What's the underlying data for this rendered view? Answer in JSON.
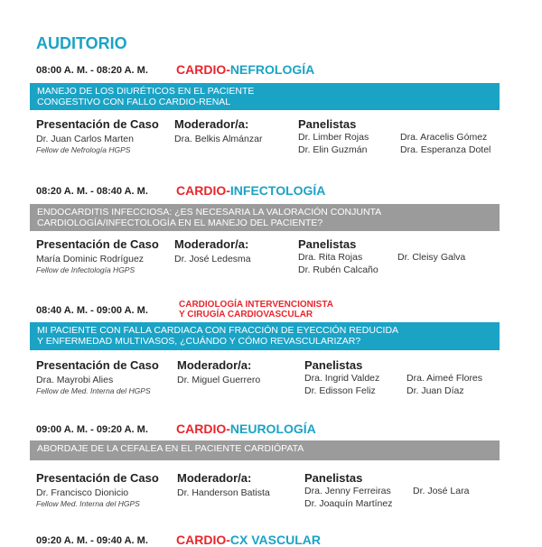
{
  "header": {
    "title": "AUDITORIO"
  },
  "sessions": [
    {
      "time": "08:00 A. M. - 08:20 A. M.",
      "topic": {
        "prefix": "CARDIO-",
        "name": "NEFROLOGÍA"
      },
      "bar_color": "#1ba3c6",
      "bar_lines": [
        "MANEJO DE LOS DIURÉTICOS EN EL PACIENTE",
        "CONGESTIVO CON FALLO CARDIO-RENAL"
      ],
      "case": {
        "heading": "Presentación de Caso",
        "name": "Dr. Juan Carlos Marten",
        "affiliation": "Fellow de Nefrología HGPS"
      },
      "moderator": {
        "heading": "Moderador/a:",
        "name": "Dra. Belkis Almánzar"
      },
      "panel": {
        "heading": "Panelistas",
        "columns": [
          [
            "Dr. Limber Rojas",
            "Dr. Elin Guzmán"
          ],
          [
            "Dra. Aracelis Gómez",
            "Dra. Esperanza Dotel"
          ]
        ]
      }
    },
    {
      "time": "08:20 A. M. - 08:40 A. M.",
      "topic": {
        "prefix": "CARDIO-",
        "name": "INFECTOLOGÍA"
      },
      "bar_color": "#9b9b9b",
      "bar_lines": [
        "ENDOCARDITIS INFECCIOSA: ¿ES NECESARIA LA VALORACIÓN CONJUNTA",
        "CARDIOLOGÍA/INFECTOLOGÍA EN EL MANEJO DEL PACIENTE?"
      ],
      "case": {
        "heading": "Presentación de Caso",
        "name": "María Dominic Rodríguez",
        "affiliation": "Fellow de Infectología HGPS"
      },
      "moderator": {
        "heading": "Moderador/a:",
        "name": "Dr. José Ledesma"
      },
      "panel": {
        "heading": "Panelistas",
        "columns": [
          [
            "Dra. Rita Rojas",
            "Dr. Rubén Calcaño"
          ],
          [
            "Dr. Cleisy Galva"
          ]
        ]
      }
    },
    {
      "time": "08:40 A. M. - 09:00 A. M.",
      "topic_lines": [
        "CARDIOLOGÍA INTERVENCIONISTA",
        "Y CIRUGÍA CARDIOVASCULAR"
      ],
      "bar_color": "#1ba3c6",
      "bar_lines": [
        "MI PACIENTE CON FALLA CARDIACA CON FRACCIÓN DE EYECCIÓN REDUCIDA",
        "Y ENFERMEDAD MULTIVASOS, ¿CUÁNDO Y CÓMO REVASCULARIZAR?"
      ],
      "case": {
        "heading": "Presentación de Caso",
        "name": "Dra. Mayrobi Alies",
        "affiliation": "Fellow de Med. Interna del HGPS"
      },
      "moderator": {
        "heading": "Moderador/a:",
        "name": "Dr. Miguel Guerrero"
      },
      "panel": {
        "heading": "Panelistas",
        "columns": [
          [
            "Dra. Ingrid Valdez",
            "Dr. Edisson Feliz"
          ],
          [
            "Dra. Aimeé Flores",
            "Dr. Juan Díaz"
          ]
        ]
      }
    },
    {
      "time": "09:00 A. M. - 09:20 A. M.",
      "topic": {
        "prefix": "CARDIO-",
        "name": "NEUROLOGÍA"
      },
      "bar_color": "#9b9b9b",
      "bar_lines": [
        "ABORDAJE DE LA CEFALEA EN EL PACIENTE CARDIÓPATA"
      ],
      "case": {
        "heading": "Presentación de Caso",
        "name": "Dr. Francisco Dionicio",
        "affiliation": "Fellow Med. Interna del HGPS"
      },
      "moderator": {
        "heading": "Moderador/a:",
        "name": "Dr. Handerson Batista"
      },
      "panel": {
        "heading": "Panelistas",
        "columns": [
          [
            "Dra. Jenny Ferreiras",
            "Dr. Joaquín Martínez"
          ],
          [
            "Dr. José Lara"
          ]
        ]
      }
    },
    {
      "time": "09:20 A. M. - 09:40 A. M.",
      "topic": {
        "prefix": "CARDIO-",
        "name": "CX VASCULAR"
      }
    }
  ]
}
